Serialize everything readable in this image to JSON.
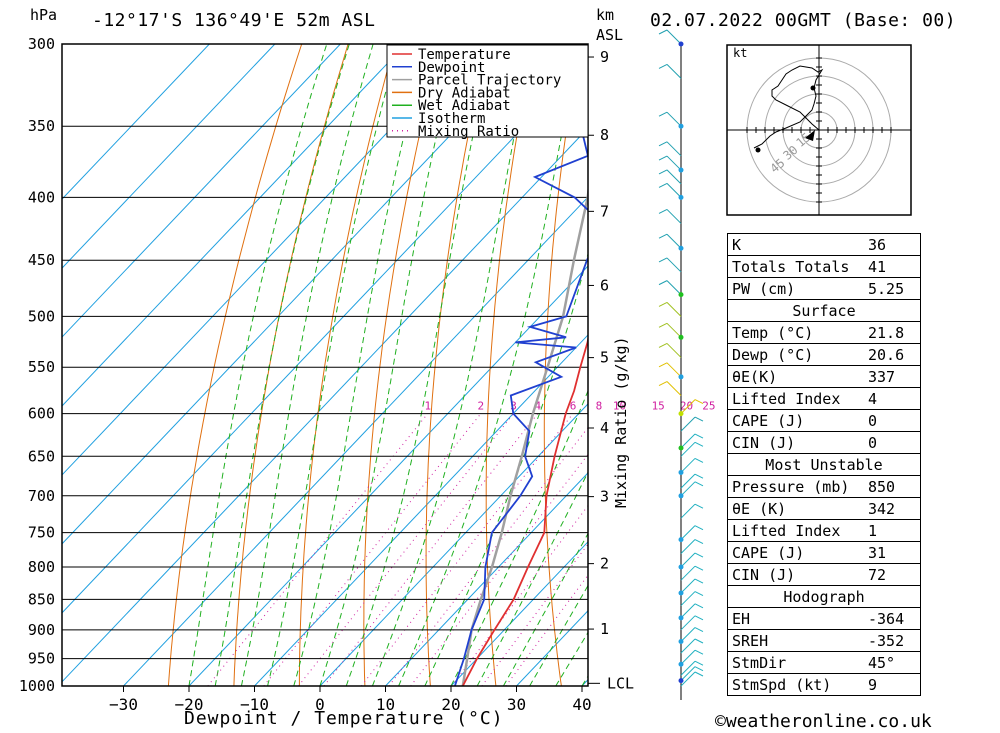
{
  "header": {
    "location": "-12°17'S 136°49'E 52m ASL",
    "datetime": "02.07.2022 00GMT (Base: 00)",
    "pressure_unit": "hPa",
    "height_unit": "km",
    "height_ref": "ASL"
  },
  "footer": {
    "x_axis_label": "Dewpoint / Temperature (°C)",
    "mixing_ratio_label": "Mixing Ratio (g/kg)",
    "copyright": "©weatheronline.co.uk"
  },
  "chart_data": [
    {
      "type": "line",
      "subtype": "skew-t log-p sounding",
      "xlabel": "Dewpoint / Temperature (°C)",
      "ylabel": "hPa",
      "x_ticks": [
        -30,
        -20,
        -10,
        0,
        10,
        20,
        30,
        40
      ],
      "pressure_ticks": [
        300,
        350,
        400,
        450,
        500,
        550,
        600,
        650,
        700,
        750,
        800,
        850,
        900,
        950,
        1000
      ],
      "height_ticks_km": [
        1,
        2,
        3,
        4,
        5,
        6,
        7,
        8,
        9
      ],
      "lcl_label": "LCL",
      "mixing_ratio_values": [
        1,
        2,
        3,
        4,
        6,
        8,
        10,
        15,
        20,
        25
      ],
      "legend": [
        "Temperature",
        "Dewpoint",
        "Parcel Trajectory",
        "Dry Adiabat",
        "Wet Adiabat",
        "Isotherm",
        "Mixing Ratio"
      ],
      "colors": {
        "temperature": "#e03030",
        "dewpoint": "#2040d0",
        "parcel": "#a0a0a0",
        "dry_adiabat": "#e07010",
        "wet_adiabat": "#20b020",
        "isotherm": "#20a0e0",
        "mixing_ratio": "#d020a0"
      },
      "series": [
        {
          "name": "Temperature",
          "points": [
            [
              1000,
              21.8
            ],
            [
              950,
              20
            ],
            [
              900,
              18.5
            ],
            [
              850,
              17
            ],
            [
              800,
              14.5
            ],
            [
              750,
              12
            ],
            [
              700,
              7
            ],
            [
              650,
              2.5
            ],
            [
              600,
              -2
            ],
            [
              575,
              -4
            ],
            [
              550,
              -6.5
            ],
            [
              525,
              -9
            ],
            [
              500,
              -12
            ],
            [
              450,
              -17.5
            ],
            [
              400,
              -24
            ],
            [
              380,
              -26
            ],
            [
              370,
              -28
            ],
            [
              300,
              -41
            ]
          ]
        },
        {
          "name": "Dewpoint",
          "points": [
            [
              1000,
              20.6
            ],
            [
              950,
              18
            ],
            [
              900,
              15
            ],
            [
              850,
              12.5
            ],
            [
              800,
              8
            ],
            [
              750,
              4
            ],
            [
              700,
              3
            ],
            [
              675,
              2
            ],
            [
              650,
              -2
            ],
            [
              620,
              -5
            ],
            [
              600,
              -10
            ],
            [
              580,
              -13
            ],
            [
              560,
              -8
            ],
            [
              545,
              -14
            ],
            [
              530,
              -10
            ],
            [
              525,
              -20
            ],
            [
              520,
              -13
            ],
            [
              510,
              -20
            ],
            [
              500,
              -16
            ],
            [
              450,
              -21
            ],
            [
              420,
              -24
            ],
            [
              400,
              -32
            ],
            [
              385,
              -41
            ],
            [
              370,
              -36
            ],
            [
              355,
              -40
            ],
            [
              345,
              -47
            ],
            [
              330,
              -62
            ],
            [
              300,
              -53
            ]
          ]
        },
        {
          "name": "Parcel Trajectory",
          "points": [
            [
              1000,
              21.8
            ],
            [
              950,
              18.5
            ],
            [
              900,
              15
            ],
            [
              850,
              12
            ],
            [
              800,
              9
            ],
            [
              750,
              5.5
            ],
            [
              700,
              1.5
            ],
            [
              650,
              -2.5
            ],
            [
              600,
              -7
            ],
            [
              550,
              -11.5
            ],
            [
              500,
              -16.5
            ],
            [
              450,
              -23
            ],
            [
              400,
              -30
            ],
            [
              350,
              -39
            ],
            [
              300,
              -48
            ]
          ]
        }
      ]
    },
    {
      "type": "scatter",
      "subtype": "hodograph",
      "unit_label": "kt",
      "ring_labels": [
        "15",
        "30",
        "45"
      ]
    },
    {
      "type": "table",
      "sections": [
        {
          "title": "",
          "rows": [
            [
              "K",
              "36"
            ],
            [
              "Totals Totals",
              "41"
            ],
            [
              "PW (cm)",
              "5.25"
            ]
          ]
        },
        {
          "title": "Surface",
          "rows": [
            [
              "Temp (°C)",
              "21.8"
            ],
            [
              "Dewp (°C)",
              "20.6"
            ],
            [
              "θE(K)",
              "337"
            ],
            [
              "Lifted Index",
              "4"
            ],
            [
              "CAPE (J)",
              "0"
            ],
            [
              "CIN (J)",
              "0"
            ]
          ]
        },
        {
          "title": "Most Unstable",
          "rows": [
            [
              "Pressure (mb)",
              "850"
            ],
            [
              "θE (K)",
              "342"
            ],
            [
              "Lifted Index",
              "1"
            ],
            [
              "CAPE (J)",
              "31"
            ],
            [
              "CIN (J)",
              "72"
            ]
          ]
        },
        {
          "title": "Hodograph",
          "rows": [
            [
              "EH",
              "-364"
            ],
            [
              "SREH",
              "-352"
            ],
            [
              "StmDir",
              "45°"
            ],
            [
              "StmSpd (kt)",
              "9"
            ]
          ]
        }
      ]
    }
  ]
}
